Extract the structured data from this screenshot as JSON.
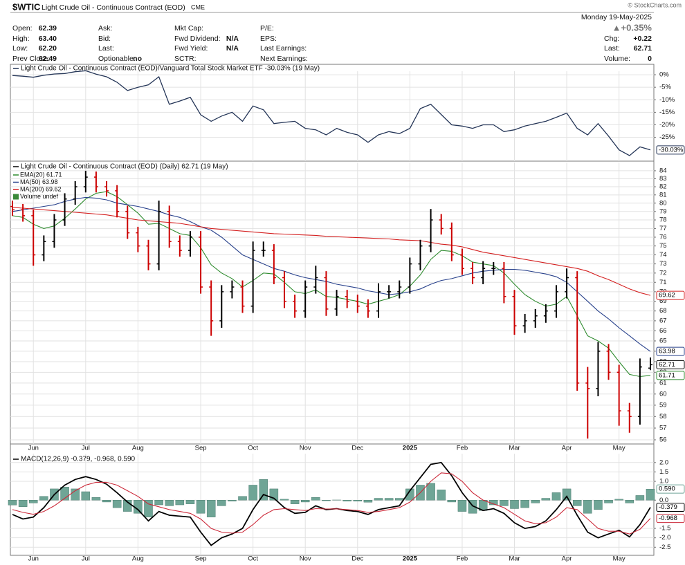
{
  "header": {
    "symbol": "$WTIC",
    "name": "Light Crude Oil - Continuous Contract (EOD)",
    "exchange": "CME",
    "date": "Monday  19-May-2025",
    "change_pct": "▲+0.35%",
    "watermark": "© StockCharts.com",
    "columns": [
      [
        {
          "label": "Open:",
          "value": "62.39"
        },
        {
          "label": "High:",
          "value": "63.40"
        },
        {
          "label": "Low:",
          "value": "62.20"
        },
        {
          "label": "Prev Close:",
          "value": "62.49"
        }
      ],
      [
        {
          "label": "Ask:"
        },
        {
          "label": "Bid:"
        },
        {
          "label": "Last:"
        },
        {
          "label": "Optionable:",
          "value": "no"
        }
      ],
      [
        {
          "label": "Mkt Cap:"
        },
        {
          "label": "Fwd Dividend:",
          "value": "N/A"
        },
        {
          "label": "Fwd Yield:",
          "value": "N/A"
        },
        {
          "label": "SCTR:"
        }
      ],
      [
        {
          "label": "P/E:"
        },
        {
          "label": "EPS:"
        },
        {
          "label": "Last Earnings:"
        },
        {
          "label": "Next Earnings:"
        }
      ]
    ],
    "right": [
      {
        "label": "Chg:",
        "value": "+0.22"
      },
      {
        "label": "Last:",
        "value": "62.71"
      },
      {
        "label": "Volume:",
        "value": "0"
      }
    ]
  },
  "chart_data": [
    {
      "type": "line",
      "title": "Light Crude Oil - Continuous Contract (EOD)/Vanguard Total Stock Market ETF -30.03% (19 May)",
      "color": "#243557",
      "values": [
        -0.3,
        -0.6,
        -1.0,
        -0.2,
        0.3,
        0.5,
        1.2,
        1.6,
        0.2,
        -0.8,
        -3.0,
        -6.3,
        -5.0,
        -4.0,
        -0.8,
        -11.8,
        -10.5,
        -9.0,
        -16.0,
        -18.6,
        -16.5,
        -15.0,
        -18.6,
        -12.5,
        -14.0,
        -19.5,
        -19.0,
        -18.6,
        -21.4,
        -22.0,
        -24.0,
        -21.4,
        -23.0,
        -24.0,
        -27.0,
        -24.0,
        -22.7,
        -23.5,
        -21.4,
        -13.5,
        -11.8,
        -15.9,
        -20.0,
        -20.5,
        -21.4,
        -20.0,
        -20.0,
        -22.7,
        -22.0,
        -20.5,
        -19.5,
        -18.6,
        -17.0,
        -15.3,
        -21.4,
        -24.0,
        -19.5,
        -24.5,
        -30.0,
        -32.3,
        -28.8,
        -30.03
      ],
      "value_labels": [
        null,
        null,
        null,
        null,
        null,
        null,
        null,
        null,
        null,
        null,
        null,
        null,
        null,
        null,
        null,
        null,
        null,
        null,
        null,
        null,
        null,
        null,
        null,
        null,
        null,
        null,
        null,
        null,
        null,
        null,
        null,
        null,
        null,
        null,
        null,
        null,
        null,
        null,
        null,
        null,
        null,
        null,
        null,
        null,
        null,
        null,
        null,
        null,
        null,
        null,
        null,
        null,
        null,
        null,
        null,
        null,
        null,
        null,
        null,
        null,
        null,
        "-30.03%"
      ],
      "ylim": [
        -34.5,
        1.4
      ],
      "yticks": [
        {
          "value": 0,
          "label": "0%"
        },
        {
          "value": -5,
          "label": "-5%"
        },
        {
          "value": -10,
          "label": "-10%"
        },
        {
          "value": -15,
          "label": "-15%"
        },
        {
          "value": -20,
          "label": "-20%"
        },
        {
          "value": -25,
          "label": "-25%"
        }
      ],
      "grid": true
    },
    {
      "type": "ohlc",
      "title": "Light Crude Oil - Continuous Contract (EOD) (Daily) 62.71 (19 May)",
      "categories": [
        null,
        null,
        "Jun",
        null,
        null,
        null,
        null,
        "Jul",
        null,
        null,
        null,
        null,
        "Aug",
        null,
        null,
        null,
        null,
        null,
        "Sep",
        null,
        null,
        null,
        null,
        "Oct",
        null,
        null,
        null,
        null,
        "Nov",
        null,
        null,
        null,
        null,
        "Dec",
        null,
        null,
        null,
        null,
        "2025",
        null,
        null,
        null,
        null,
        "Feb",
        null,
        null,
        null,
        null,
        "Mar",
        null,
        null,
        null,
        null,
        "Apr",
        null,
        null,
        null,
        null,
        "May",
        null,
        null,
        null
      ],
      "open": [
        79.6,
        79.2,
        78.5,
        74,
        75.5,
        78,
        80.5,
        82,
        83.2,
        82,
        81.5,
        79,
        76.5,
        75,
        73,
        79,
        75.5,
        74.5,
        76,
        70.5,
        67,
        70,
        70.5,
        68.5,
        74.5,
        74.5,
        71.5,
        69,
        68,
        70.5,
        71.5,
        68.2,
        69.5,
        69,
        68.5,
        68,
        70,
        70,
        70.5,
        73,
        75,
        78,
        77,
        74,
        72.5,
        71.5,
        72.5,
        72.5,
        69.5,
        66.5,
        67,
        67.5,
        68,
        70,
        71.5,
        61,
        60.5,
        64,
        62,
        58.5,
        58,
        62.39
      ],
      "high": [
        80.3,
        79.9,
        79.2,
        76.2,
        78.7,
        81.2,
        82.7,
        84.0,
        83.9,
        82.7,
        82.2,
        79.7,
        77.2,
        75.7,
        80.3,
        79.7,
        76.2,
        76.7,
        76.7,
        71.2,
        70.7,
        71.2,
        71.2,
        75.5,
        75.5,
        75.2,
        72.2,
        69.7,
        71.2,
        72.8,
        72.2,
        70.2,
        70.2,
        69.7,
        69.2,
        70.9,
        70.7,
        71.2,
        73.7,
        75.7,
        79.3,
        78.7,
        77.7,
        74.7,
        73.2,
        73.3,
        73.2,
        73.2,
        70.2,
        67.7,
        68.2,
        68.7,
        70.7,
        72.5,
        72.2,
        62.5,
        64.9,
        64.7,
        62.7,
        59.2,
        63.3,
        63.4
      ],
      "low": [
        78.5,
        77.8,
        72.8,
        73.3,
        74.8,
        77.3,
        79.8,
        81.3,
        81.3,
        80.8,
        78.3,
        75.8,
        74.3,
        72.3,
        72.3,
        74.8,
        73.8,
        73.8,
        69.8,
        65.5,
        66.3,
        69.3,
        67.8,
        67.8,
        73.8,
        70.8,
        68.3,
        67.3,
        67.3,
        69.8,
        67.5,
        67.5,
        68.3,
        67.8,
        67.3,
        67.3,
        69.3,
        69.3,
        69.8,
        72.3,
        74.3,
        76.3,
        73.3,
        71.8,
        70.8,
        70.8,
        71.8,
        68.8,
        65.6,
        65.8,
        66.3,
        66.8,
        67.3,
        69.3,
        60.3,
        56.1,
        59.8,
        61.3,
        57.2,
        56.6,
        57.3,
        62.2
      ],
      "close": [
        79.2,
        78.5,
        74,
        75.5,
        78,
        80.5,
        82,
        83.2,
        82,
        81.5,
        79,
        76.5,
        75,
        73,
        79,
        75.5,
        74.5,
        76,
        70.5,
        67,
        70,
        70.5,
        68.5,
        74.5,
        74.5,
        71.5,
        69,
        68,
        70.5,
        71.5,
        68.2,
        69.5,
        69,
        68.5,
        68,
        70,
        70,
        70.5,
        73,
        75,
        78,
        77,
        74,
        72.5,
        71.5,
        72.5,
        72.5,
        69.5,
        66.5,
        67,
        67.5,
        68,
        70,
        71.5,
        61,
        60.5,
        64,
        62,
        58.5,
        58,
        62.5,
        62.71
      ],
      "up_color": "#000000",
      "down_color": "#cc0000",
      "series": [
        {
          "name": "EMA(20) 61.71",
          "color": "#2e8b2e",
          "values": [
            78.5,
            78.3,
            77.5,
            77.0,
            77.3,
            78.2,
            79.3,
            80.5,
            81.2,
            81.4,
            80.8,
            79.8,
            78.8,
            77.5,
            77.6,
            77.0,
            76.4,
            76.2,
            74.8,
            72.9,
            72.0,
            71.4,
            70.5,
            71.2,
            72.0,
            71.9,
            71.0,
            70.0,
            69.8,
            70.2,
            69.5,
            69.4,
            69.2,
            69.0,
            68.7,
            69.0,
            69.3,
            69.7,
            70.6,
            71.8,
            73.5,
            74.5,
            74.4,
            73.9,
            73.2,
            73.0,
            72.8,
            72.0,
            70.8,
            69.7,
            69.0,
            68.5,
            68.7,
            69.5,
            67.5,
            65.5,
            65.0,
            64.3,
            63.0,
            61.8,
            61.6,
            61.71
          ]
        },
        {
          "name": "MA(50) 63.98",
          "color": "#27408b",
          "values": [
            79.0,
            79.2,
            79.4,
            79.6,
            79.8,
            80.2,
            80.5,
            80.7,
            80.6,
            80.4,
            80.0,
            79.8,
            79.6,
            79.3,
            79.0,
            78.6,
            78.3,
            77.8,
            77.2,
            76.8,
            76.0,
            75.0,
            74.0,
            73.5,
            73.0,
            72.5,
            72.2,
            71.8,
            71.5,
            71.3,
            71.1,
            70.8,
            70.6,
            70.4,
            70.1,
            69.9,
            69.7,
            69.8,
            70.0,
            70.3,
            70.8,
            71.2,
            71.4,
            71.7,
            72.0,
            72.2,
            72.3,
            72.4,
            72.4,
            72.3,
            72.1,
            71.9,
            71.6,
            71.0,
            70.0,
            69.0,
            68.0,
            67.2,
            66.3,
            65.5,
            64.7,
            63.98
          ]
        },
        {
          "name": "MA(200) 69.62",
          "color": "#d42020",
          "values": [
            79.5,
            79.4,
            79.3,
            79.2,
            79.1,
            79.0,
            78.9,
            78.8,
            78.7,
            78.6,
            78.4,
            78.2,
            78.0,
            77.9,
            77.8,
            77.7,
            77.6,
            77.4,
            77.2,
            77.0,
            76.9,
            76.8,
            76.7,
            76.6,
            76.5,
            76.4,
            76.35,
            76.3,
            76.25,
            76.2,
            76.1,
            76.05,
            76.0,
            75.95,
            75.9,
            75.85,
            75.8,
            75.7,
            75.65,
            75.6,
            75.4,
            75.2,
            75.1,
            74.9,
            74.6,
            74.3,
            74.1,
            73.9,
            73.7,
            73.5,
            73.3,
            73.1,
            72.9,
            72.7,
            72.5,
            72.2,
            71.7,
            71.3,
            70.8,
            70.3,
            69.9,
            69.62
          ]
        }
      ],
      "volume_legend": "Volume undef",
      "volume_color": "#3a8a3a",
      "log_scale": true,
      "ylim": [
        55.65,
        85.05
      ],
      "yticks": [
        56,
        57,
        58,
        59,
        60,
        61,
        62,
        63,
        64,
        65,
        66,
        67,
        68,
        69,
        70,
        71,
        72,
        73,
        74,
        75,
        76,
        77,
        78,
        79,
        80,
        81,
        82,
        83,
        84
      ],
      "grid": true
    },
    {
      "type": "macd",
      "title": "MACD(12,26,9) -0.379, -0.968, 0.590",
      "categories": [
        null,
        null,
        "Jun",
        null,
        null,
        null,
        null,
        "Jul",
        null,
        null,
        null,
        null,
        "Aug",
        null,
        null,
        null,
        null,
        null,
        "Sep",
        null,
        null,
        null,
        null,
        "Oct",
        null,
        null,
        null,
        null,
        "Nov",
        null,
        null,
        null,
        null,
        "Dec",
        null,
        null,
        null,
        null,
        "2025",
        null,
        null,
        null,
        null,
        "Feb",
        null,
        null,
        null,
        null,
        "Mar",
        null,
        null,
        null,
        null,
        "Apr",
        null,
        null,
        null,
        null,
        "May",
        null,
        null,
        null
      ],
      "series": [
        {
          "color": "#000000",
          "values": [
            -0.76,
            -1.0,
            -0.9,
            -0.4,
            0.3,
            0.8,
            1.1,
            1.25,
            1.1,
            0.85,
            0.4,
            -0.1,
            -0.5,
            -1.1,
            -0.6,
            -0.8,
            -0.85,
            -0.9,
            -1.7,
            -2.4,
            -2.0,
            -1.8,
            -1.5,
            -0.5,
            0.3,
            0.1,
            -0.4,
            -0.7,
            -0.65,
            -0.3,
            -0.5,
            -0.45,
            -0.55,
            -0.6,
            -0.76,
            -0.5,
            -0.4,
            -0.3,
            0.5,
            1.2,
            1.9,
            2.0,
            1.3,
            0.4,
            -0.3,
            -0.55,
            -0.45,
            -0.7,
            -1.2,
            -1.5,
            -1.4,
            -1.1,
            -0.5,
            0.2,
            -0.8,
            -1.7,
            -2.0,
            -1.8,
            -1.6,
            -1.95,
            -1.3,
            -0.379
          ]
        },
        {
          "color": "#cc2a3a",
          "values": [
            -0.5,
            -0.65,
            -0.75,
            -0.6,
            -0.3,
            0.1,
            0.5,
            0.8,
            0.95,
            0.95,
            0.8,
            0.5,
            0.2,
            -0.2,
            -0.35,
            -0.5,
            -0.6,
            -0.7,
            -1.0,
            -1.5,
            -1.7,
            -1.75,
            -1.7,
            -1.3,
            -0.8,
            -0.5,
            -0.45,
            -0.5,
            -0.55,
            -0.45,
            -0.47,
            -0.46,
            -0.5,
            -0.55,
            -0.65,
            -0.6,
            -0.5,
            -0.4,
            -0.1,
            0.4,
            1.0,
            1.45,
            1.4,
            1.0,
            0.4,
            0.0,
            -0.2,
            -0.4,
            -0.75,
            -1.1,
            -1.25,
            -1.2,
            -0.9,
            -0.4,
            -0.5,
            -1.0,
            -1.5,
            -1.65,
            -1.65,
            -1.8,
            -1.55,
            -0.968
          ]
        }
      ],
      "histogram": {
        "color": "#6fa596",
        "values": [
          -0.26,
          -0.35,
          -0.15,
          0.2,
          0.6,
          0.7,
          0.6,
          0.45,
          0.15,
          -0.1,
          -0.4,
          -0.6,
          -0.7,
          -0.9,
          -0.25,
          -0.3,
          -0.25,
          -0.2,
          -0.7,
          -0.9,
          -0.3,
          -0.05,
          0.2,
          0.8,
          1.1,
          0.6,
          0.05,
          -0.2,
          -0.1,
          0.15,
          -0.03,
          0.01,
          -0.05,
          -0.05,
          -0.11,
          0.1,
          0.1,
          0.1,
          0.6,
          0.8,
          0.9,
          0.55,
          -0.1,
          -0.6,
          -0.7,
          -0.55,
          -0.25,
          -0.3,
          -0.45,
          -0.4,
          -0.15,
          0.1,
          0.4,
          0.6,
          -0.3,
          -0.7,
          -0.5,
          -0.15,
          0.05,
          -0.15,
          0.25,
          0.59
        ],
        "value_labels": [
          null,
          null,
          null,
          null,
          null,
          null,
          null,
          null,
          null,
          null,
          null,
          null,
          null,
          null,
          null,
          null,
          null,
          null,
          null,
          null,
          null,
          null,
          null,
          null,
          null,
          null,
          null,
          null,
          null,
          null,
          null,
          null,
          null,
          null,
          null,
          null,
          null,
          null,
          null,
          null,
          null,
          null,
          null,
          null,
          null,
          null,
          null,
          null,
          null,
          null,
          null,
          null,
          null,
          null,
          null,
          null,
          null,
          null,
          null,
          null,
          null,
          "0.590"
        ]
      },
      "ylim": [
        -2.93,
        2.47
      ],
      "yticks": [
        {
          "value": 2,
          "label": "2.0"
        },
        1.5,
        {
          "value": 1,
          "label": "1.0"
        },
        {
          "value": 0,
          "label": "0.0"
        },
        -1.5,
        {
          "value": -2,
          "label": "-2.0"
        },
        -2.5
      ],
      "grid": true
    }
  ]
}
